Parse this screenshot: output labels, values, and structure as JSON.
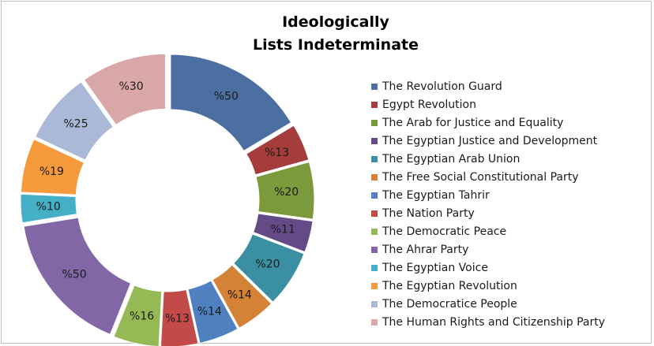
{
  "chart_data": {
    "type": "pie",
    "donut": true,
    "title": [
      "Ideologically",
      "Lists Indeterminate"
    ],
    "legend_position": "right",
    "categories": [
      "The Revolution Guard",
      "Egypt Revolution",
      "The Arab for Justice and Equality",
      "The Egyptian Justice and Development",
      "The Egyptian Arab Union",
      "The Free Social Constitutional Party",
      "The Egyptian Tahrir",
      "The Nation Party",
      "The Democratic Peace",
      "The Ahrar Party",
      "The Egyptian Voice",
      "The Egyptian Revolution",
      "The Democratice People",
      "The Human Rights and Citizenship Party"
    ],
    "values": [
      50,
      13,
      20,
      11,
      20,
      14,
      14,
      13,
      16,
      50,
      10,
      19,
      25,
      30
    ],
    "labels": [
      "%50",
      "%13",
      "%20",
      "%11",
      "%20",
      "%14",
      "%14",
      "%13",
      "%16",
      "%50",
      "%10",
      "%19",
      "%25",
      "%30"
    ],
    "colors": [
      "#4a6fa0",
      "#a43d3b",
      "#7b9a3c",
      "#654a88",
      "#3a8fa3",
      "#d48235",
      "#4f80c0",
      "#c24a48",
      "#95b954",
      "#8266a6",
      "#44afc6",
      "#f59a3d",
      "#a9b9d7",
      "#d9a7a7"
    ]
  }
}
